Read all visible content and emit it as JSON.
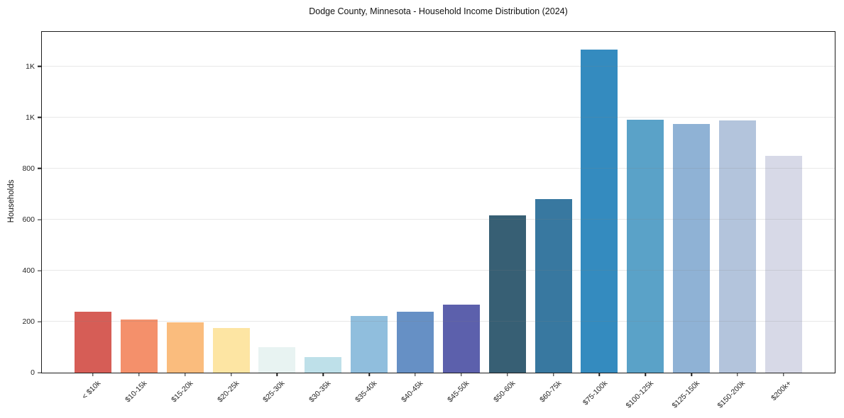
{
  "title": "Dodge County, Minnesota - Household Income Distribution (2024)",
  "chart_data": {
    "type": "bar",
    "title": "Dodge County, Minnesota - Household Income Distribution (2024)",
    "xlabel": "",
    "ylabel": "Households",
    "categories": [
      "< $10k",
      "$10-15k",
      "$15-20k",
      "$20-25k",
      "$25-30k",
      "$30-35k",
      "$35-40k",
      "$40-45k",
      "$45-50k",
      "$50-60k",
      "$60-75k",
      "$75-100k",
      "$100-125k",
      "$125-150k",
      "$150-200k",
      "$200k+"
    ],
    "values": [
      238,
      209,
      197,
      175,
      100,
      60,
      222,
      240,
      267,
      615,
      681,
      1266,
      991,
      973,
      988,
      849
    ],
    "bar_colors": [
      "#d65d56",
      "#f4906b",
      "#fabc7d",
      "#fde5a3",
      "#e8f3f2",
      "#bee0e9",
      "#90bedd",
      "#6690c5",
      "#5c60ac",
      "#375f74",
      "#3878a0",
      "#348bbf",
      "#5aa2c8",
      "#8fb2d5",
      "#b3c4dc",
      "#d7d9e7"
    ],
    "ylim": [
      0,
      1335
    ],
    "yticks": [
      {
        "value": 0,
        "label": "0"
      },
      {
        "value": 200,
        "label": "200"
      },
      {
        "value": 400,
        "label": "400"
      },
      {
        "value": 600,
        "label": "600"
      },
      {
        "value": 800,
        "label": "800"
      },
      {
        "value": 1000,
        "label": "1K"
      },
      {
        "value": 1200,
        "label": "1K"
      }
    ],
    "grid": "horizontal-light",
    "legend": "none",
    "colors": {
      "background": "#ffffff",
      "spine": "#1c1c1c",
      "gridline": "#e9e9e9",
      "text": "#1a1a1a"
    }
  }
}
